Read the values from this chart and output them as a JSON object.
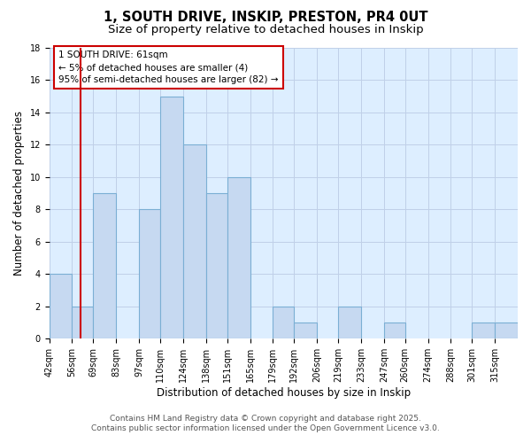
{
  "title": "1, SOUTH DRIVE, INSKIP, PRESTON, PR4 0UT",
  "subtitle": "Size of property relative to detached houses in Inskip",
  "xlabel": "Distribution of detached houses by size in Inskip",
  "ylabel": "Number of detached properties",
  "bin_labels": [
    "42sqm",
    "56sqm",
    "69sqm",
    "83sqm",
    "97sqm",
    "110sqm",
    "124sqm",
    "138sqm",
    "151sqm",
    "165sqm",
    "179sqm",
    "192sqm",
    "206sqm",
    "219sqm",
    "233sqm",
    "247sqm",
    "260sqm",
    "274sqm",
    "288sqm",
    "301sqm",
    "315sqm"
  ],
  "bin_edges": [
    42,
    56,
    69,
    83,
    97,
    110,
    124,
    138,
    151,
    165,
    179,
    192,
    206,
    219,
    233,
    247,
    260,
    274,
    288,
    301,
    315,
    329
  ],
  "counts": [
    4,
    2,
    9,
    0,
    8,
    15,
    12,
    9,
    10,
    0,
    2,
    1,
    0,
    2,
    0,
    1,
    0,
    0,
    0,
    1,
    1
  ],
  "bar_color": "#c6d9f1",
  "bar_edge_color": "#7bafd4",
  "grid_color": "#c0d0e8",
  "property_line_x": 61,
  "property_line_color": "#cc0000",
  "annotation_line1": "1 SOUTH DRIVE: 61sqm",
  "annotation_line2": "← 5% of detached houses are smaller (4)",
  "annotation_line3": "95% of semi-detached houses are larger (82) →",
  "annotation_box_color": "#ffffff",
  "annotation_box_edge_color": "#cc0000",
  "ylim": [
    0,
    18
  ],
  "yticks": [
    0,
    2,
    4,
    6,
    8,
    10,
    12,
    14,
    16,
    18
  ],
  "footnote1": "Contains HM Land Registry data © Crown copyright and database right 2025.",
  "footnote2": "Contains public sector information licensed under the Open Government Licence v3.0.",
  "background_color": "#ddeeff",
  "title_fontsize": 10.5,
  "subtitle_fontsize": 9.5,
  "axis_label_fontsize": 8.5,
  "tick_fontsize": 7,
  "annotation_fontsize": 7.5,
  "footnote_fontsize": 6.5
}
